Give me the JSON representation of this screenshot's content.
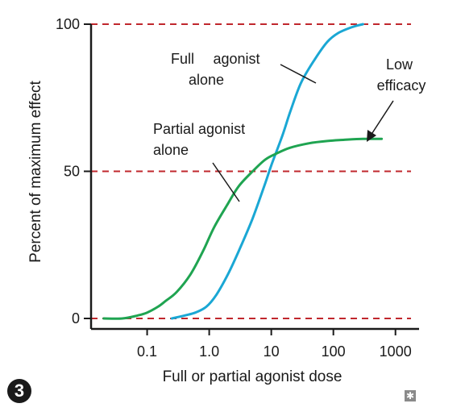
{
  "chart_data": {
    "type": "line",
    "title": "",
    "xlabel": "Full or partial agonist dose",
    "ylabel": "Percent of maximum effect",
    "x_scale": "log",
    "x_ticks": [
      0.1,
      1.0,
      10,
      100,
      1000
    ],
    "x_tick_labels": [
      "0.1",
      "1.0",
      "10",
      "100",
      "1000"
    ],
    "y_ticks": [
      0,
      50,
      100
    ],
    "y_tick_labels": [
      "0",
      "50",
      "100"
    ],
    "ylim": [
      0,
      100
    ],
    "reference_lines": [
      0,
      50,
      100
    ],
    "reference_line_color": "#c0272d",
    "series": [
      {
        "name": "Full agonist alone",
        "color": "#1aa7d4",
        "x": [
          0.25,
          0.4,
          0.6,
          0.9,
          1.3,
          2,
          3,
          5,
          8,
          10,
          15,
          20,
          30,
          50,
          80,
          120,
          200,
          300
        ],
        "y": [
          0,
          1,
          2,
          4,
          8,
          15,
          23,
          34,
          46,
          52,
          62,
          70,
          80,
          88,
          94,
          97,
          99,
          100
        ]
      },
      {
        "name": "Partial agonist alone",
        "color": "#1fa451",
        "x": [
          0.02,
          0.04,
          0.07,
          0.1,
          0.15,
          0.2,
          0.3,
          0.5,
          0.8,
          1.2,
          2,
          3,
          5,
          8,
          12,
          20,
          40,
          80,
          150,
          300,
          600
        ],
        "y": [
          0,
          0,
          1,
          2,
          4,
          6,
          9,
          15,
          23,
          31,
          39,
          45,
          50,
          54,
          56,
          58,
          59.5,
          60.3,
          60.7,
          61,
          61
        ]
      }
    ],
    "annotations": [
      {
        "lines": [
          "Full",
          "agonist",
          "alone"
        ]
      },
      {
        "lines": [
          "Partial agonist",
          "alone"
        ]
      },
      {
        "lines": [
          "Low",
          "efficacy"
        ]
      }
    ]
  },
  "badge": "3",
  "corner_icon": "asterisk-icon"
}
